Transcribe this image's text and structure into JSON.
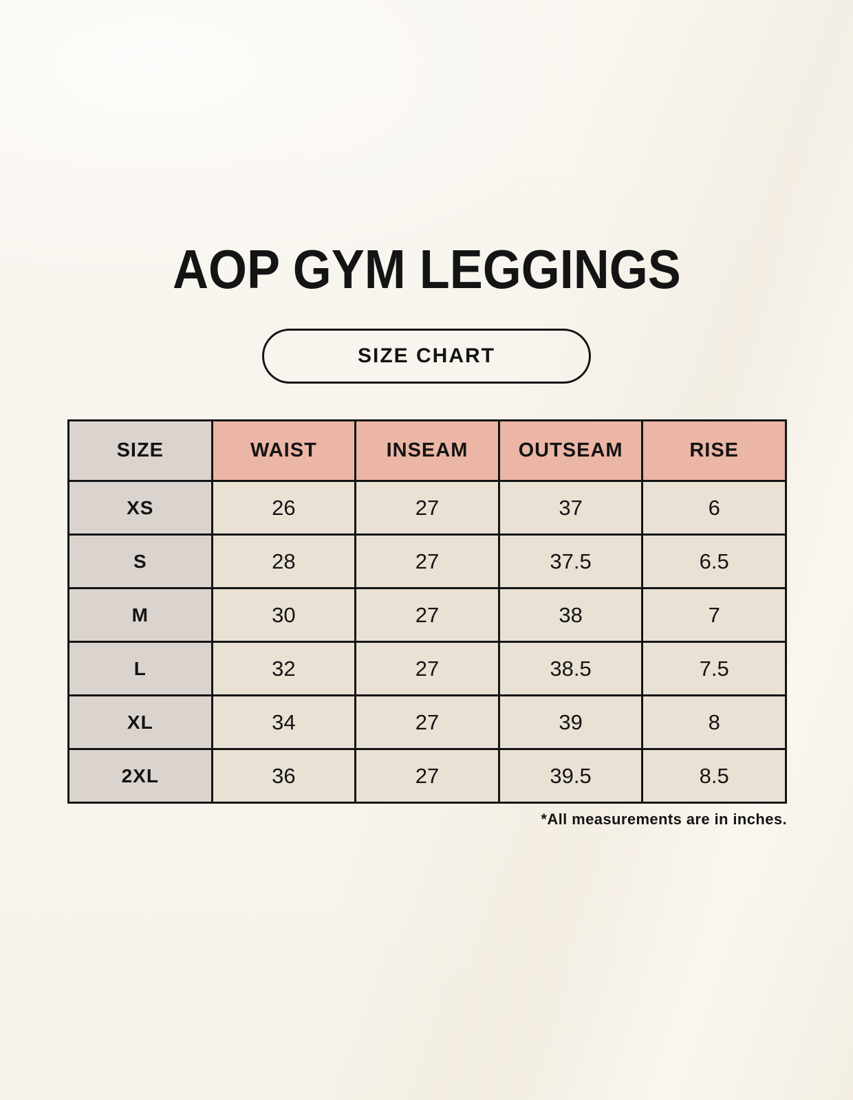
{
  "header": {
    "title": "AOP GYM LEGGINGS",
    "badge_label": "SIZE CHART"
  },
  "footnote": "*All measurements are in inches.",
  "colors": {
    "background": "#f8f4ed",
    "header_fill": "#ebb6a5",
    "size_column_fill": "#dbd4ce",
    "cell_fill": "#e9e1d4",
    "border": "#141414",
    "text": "#141414"
  },
  "chart_data": {
    "type": "table",
    "title": "AOP GYM LEGGINGS SIZE CHART",
    "units": "inches",
    "columns": [
      "SIZE",
      "WAIST",
      "INSEAM",
      "OUTSEAM",
      "RISE"
    ],
    "rows": [
      [
        "XS",
        "26",
        "27",
        "37",
        "6"
      ],
      [
        "S",
        "28",
        "27",
        "37.5",
        "6.5"
      ],
      [
        "M",
        "30",
        "27",
        "38",
        "7"
      ],
      [
        "L",
        "32",
        "27",
        "38.5",
        "7.5"
      ],
      [
        "XL",
        "34",
        "27",
        "39",
        "8"
      ],
      [
        "2XL",
        "36",
        "27",
        "39.5",
        "8.5"
      ]
    ]
  }
}
